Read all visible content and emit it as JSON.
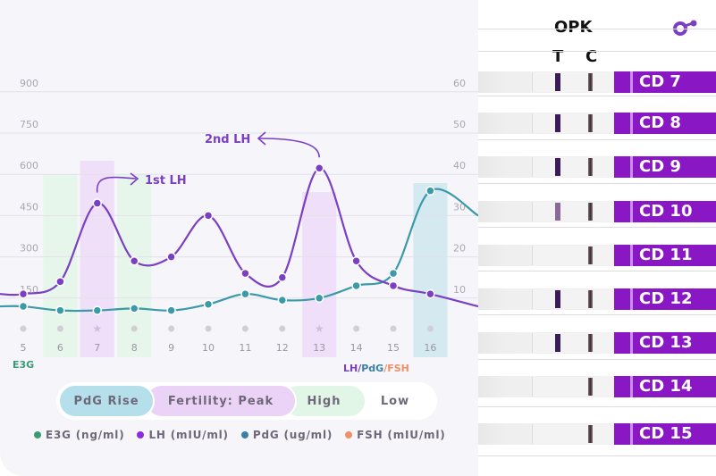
{
  "chart_data": {
    "type": "line",
    "x": [
      5,
      6,
      7,
      8,
      9,
      10,
      11,
      12,
      13,
      14,
      15,
      16
    ],
    "left_axis": {
      "label": "E3G",
      "ticks": [
        150,
        300,
        450,
        600,
        750,
        900
      ],
      "ylim": [
        0,
        900
      ]
    },
    "right_axis": {
      "label_parts": [
        "LH",
        "/",
        "PdG",
        "/",
        "FSH"
      ],
      "ticks": [
        10,
        20,
        30,
        40,
        50,
        60
      ],
      "ylim": [
        0,
        60
      ]
    },
    "series": [
      {
        "name": "LH (mIU/ml)",
        "axis": "right",
        "color": "#7b3fc4",
        "values": [
          11,
          14,
          33,
          19,
          20,
          30,
          16,
          15,
          41.5,
          19,
          13,
          11
        ]
      },
      {
        "name": "PdG (ug/ml)",
        "axis": "right",
        "color": "#3a9aa8",
        "values": [
          8,
          7,
          7,
          7.5,
          7,
          8.5,
          11,
          9.5,
          10,
          13,
          16,
          36
        ]
      }
    ],
    "day_markers": [
      "dot",
      "dot",
      "star",
      "dot",
      "dot",
      "dot",
      "dot",
      "dot",
      "star",
      "dot",
      "dot",
      "dot"
    ],
    "shaded_days": [
      {
        "day": 6,
        "phase": "High"
      },
      {
        "day": 7,
        "phase": "Peak"
      },
      {
        "day": 8,
        "phase": "High"
      },
      {
        "day": 13,
        "phase": "Peak"
      },
      {
        "day": 16,
        "phase": "PdG Rise"
      }
    ],
    "annotations": [
      {
        "text": "1st LH",
        "day": 7
      },
      {
        "text": "2nd LH",
        "day": 13
      }
    ],
    "grid": true
  },
  "phases": [
    {
      "label": "PdG Rise",
      "color": "#b4dfeb"
    },
    {
      "label": "Fertility: Peak",
      "color": "#ead3f6"
    },
    {
      "label": "High",
      "color": "#e1f6e7"
    },
    {
      "label": "Low",
      "color": "#ffffff"
    }
  ],
  "legend": [
    {
      "label": "E3G (ng/ml)",
      "color": "#3a9a76"
    },
    {
      "label": "LH (mIU/ml)",
      "color": "#8a2be2"
    },
    {
      "label": "PdG (ug/ml)",
      "color": "#3a7fa8"
    },
    {
      "label": "FSH (mIU/ml)",
      "color": "#ee9168"
    }
  ],
  "right_label_colors": [
    "#7b3fc4",
    "#7b3fc4",
    "#3a7fa8",
    "#ee9168",
    "#ee9168"
  ],
  "opk": {
    "title": "OPK",
    "t_label": "T",
    "c_label": "C",
    "strips": [
      {
        "label": "CD 7",
        "t_line": "dark"
      },
      {
        "label": "CD 8",
        "t_line": "dark"
      },
      {
        "label": "CD 9",
        "t_line": "dark"
      },
      {
        "label": "CD 10",
        "t_line": "faint"
      },
      {
        "label": "CD 11",
        "t_line": "none"
      },
      {
        "label": "CD 12",
        "t_line": "dark"
      },
      {
        "label": "CD 13",
        "t_line": "dark"
      },
      {
        "label": "CD 14",
        "t_line": "none"
      },
      {
        "label": "CD 15",
        "t_line": "none"
      }
    ]
  },
  "logo_icon": "brand-logo-icon",
  "accent": "#8a17c4"
}
